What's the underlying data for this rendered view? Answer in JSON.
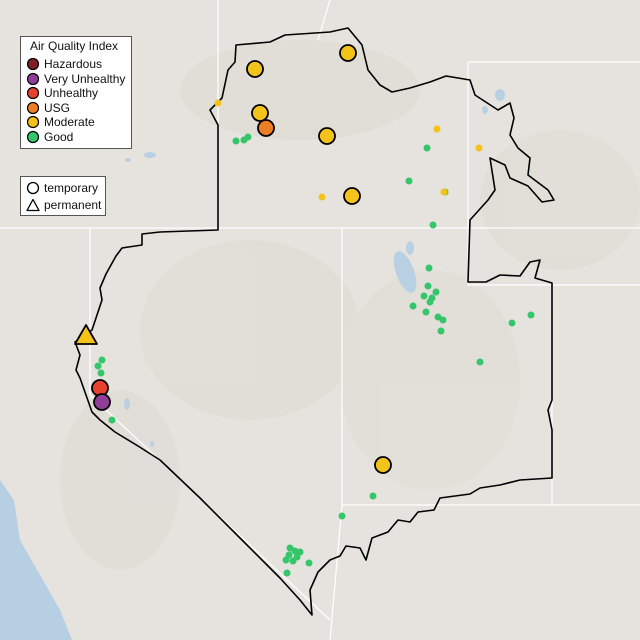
{
  "legend": {
    "title": "Air Quality Index",
    "categories": [
      {
        "label": "Hazardous",
        "color": "#7e2126",
        "icon": "circle-swatch-icon"
      },
      {
        "label": "Very Unhealthy",
        "color": "#8f3f97",
        "icon": "circle-swatch-icon"
      },
      {
        "label": "Unhealthy",
        "color": "#e8412e",
        "icon": "circle-swatch-icon"
      },
      {
        "label": "USG",
        "color": "#ee7e26",
        "icon": "circle-swatch-icon"
      },
      {
        "label": "Moderate",
        "color": "#f4c31a",
        "icon": "circle-swatch-icon"
      },
      {
        "label": "Good",
        "color": "#35c56b",
        "icon": "circle-swatch-icon"
      }
    ]
  },
  "monitor_legend": {
    "items": [
      {
        "label": "temporary",
        "icon": "circle-outline-icon"
      },
      {
        "label": "permanent",
        "icon": "triangle-outline-icon"
      }
    ]
  },
  "colors": {
    "background": "#e6e3de",
    "region_border": "#000000",
    "state_lines": "#ffffff",
    "water": "#b9d0e2",
    "ocean": "#b7cfe3"
  }
}
